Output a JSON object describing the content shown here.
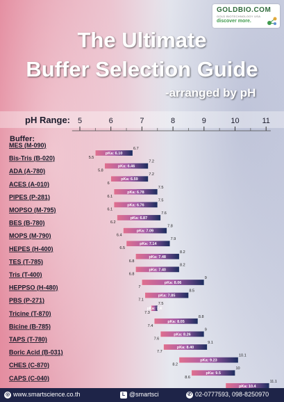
{
  "header": {
    "logo_brand": "GOLDBIO.COM",
    "logo_sub": "GOLD BIOTECHNOLOGY USA",
    "logo_tagline": "discover more.",
    "title_line1": "The Ultimate",
    "title_line2": "Buffer Selection Guide",
    "subtitle": "-arranged by pH"
  },
  "chart_data": {
    "type": "range-bar",
    "axis_label": "pH Range:",
    "category_header": "Buffer:",
    "ticks": [
      5,
      6,
      7,
      8,
      9,
      10,
      11
    ],
    "xlim": [
      4.7,
      11.2
    ],
    "buffers": [
      {
        "name": "MES (M-090)",
        "low": 5.5,
        "high": 6.7,
        "pka_label": "pKa: 6.10"
      },
      {
        "name": "Bis-Tris (B-020)",
        "low": 5.8,
        "high": 7.2,
        "pka_label": "pKa: 6.46"
      },
      {
        "name": "ADA (A-780)",
        "low": 6.0,
        "high": 7.2,
        "pka_label": "pKa: 6.59"
      },
      {
        "name": "ACES (A-010)",
        "low": 6.1,
        "high": 7.5,
        "pka_label": "pKa: 6.78"
      },
      {
        "name": "PIPES (P-281)",
        "low": 6.1,
        "high": 7.5,
        "pka_label": "pKa: 6.76"
      },
      {
        "name": "MOPSO (M-795)",
        "low": 6.2,
        "high": 7.6,
        "pka_label": "pKa: 6.87"
      },
      {
        "name": "BES (B-780)",
        "low": 6.4,
        "high": 7.8,
        "pka_label": "pKa: 7.09"
      },
      {
        "name": "MOPS (M-790)",
        "low": 6.5,
        "high": 7.9,
        "pka_label": "pKa: 7.14"
      },
      {
        "name": "HEPES (H-400)",
        "low": 6.8,
        "high": 8.2,
        "pka_label": "pKa: 7.48"
      },
      {
        "name": "TES (T-785)",
        "low": 6.8,
        "high": 8.2,
        "pka_label": "pKa: 7.40"
      },
      {
        "name": "Tris (T-400)",
        "low": 7.0,
        "high": 9.0,
        "pka_label": "pKa: 8.06"
      },
      {
        "name": "HEPPSO (H-480)",
        "low": 7.1,
        "high": 8.5,
        "pka_label": "pKa: 7.85"
      },
      {
        "name": "PBS (P-271)",
        "low": 7.3,
        "high": 7.5,
        "pka_label": "pKa: 7.4"
      },
      {
        "name": "Tricine (T-870)",
        "low": 7.4,
        "high": 8.8,
        "pka_label": "pKa: 8.05"
      },
      {
        "name": "Bicine (B-785)",
        "low": 7.6,
        "high": 9.0,
        "pka_label": "pKa: 8.26"
      },
      {
        "name": "TAPS (T-780)",
        "low": 7.7,
        "high": 9.1,
        "pka_label": "pKa: 8.40"
      },
      {
        "name": "Boric Acid (B-031)",
        "low": 8.2,
        "high": 10.1,
        "pka_label": "pKa: 9.23"
      },
      {
        "name": "CHES (C-870)",
        "low": 8.6,
        "high": 10.0,
        "pka_label": "pKa: 9.5"
      },
      {
        "name": "CAPS (C-040)",
        "low": 9.7,
        "high": 11.1,
        "pka_label": "pKa: 10.4"
      }
    ],
    "colors": {
      "start": "#e0708e",
      "mid": "#a65aa6",
      "end": "#1b2d5e"
    }
  },
  "footer": {
    "website": "www.smartscience.co.th",
    "line_id": "@smartsci",
    "phone": "02-0777593, 098-8250970"
  }
}
